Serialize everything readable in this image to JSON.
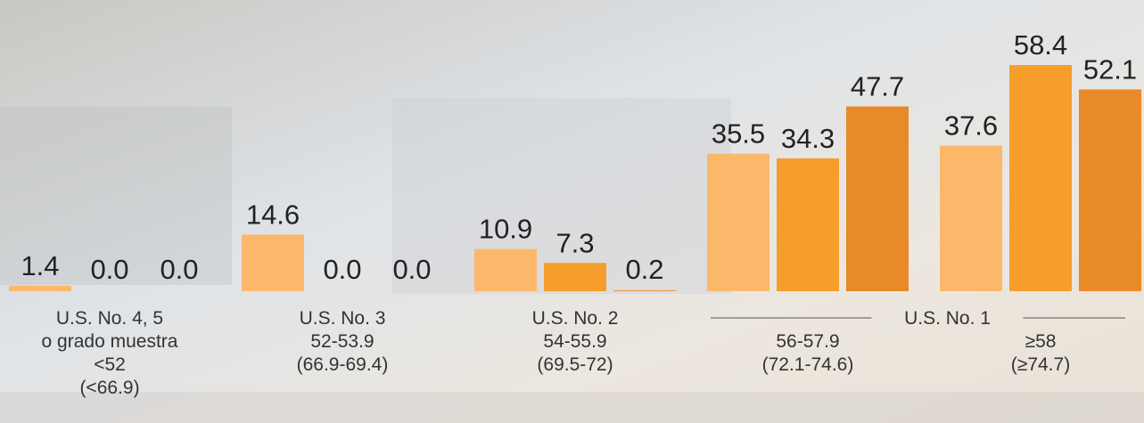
{
  "chart_data": {
    "type": "bar",
    "categories": [
      [
        "U.S. No. 4, 5",
        "o grado muestra",
        "<52",
        "(<66.9)"
      ],
      [
        "U.S. No. 3",
        "52-53.9",
        "(66.9-69.4)"
      ],
      [
        "U.S. No. 2",
        "54-55.9",
        "(69.5-72)"
      ],
      [
        "56-57.9",
        "(72.1-74.6)"
      ],
      [
        "≥58",
        "(≥74.7)"
      ]
    ],
    "group_label": "U.S. No. 1",
    "series": [
      {
        "color": "#fbb86a",
        "values": [
          1.4,
          14.6,
          10.9,
          35.5,
          37.6
        ],
        "value_labels": [
          "1.4",
          "14.6",
          "10.9",
          "35.5",
          "37.6"
        ]
      },
      {
        "color": "#f59e2c",
        "values": [
          0,
          0,
          7.3,
          34.3,
          58.4
        ],
        "value_labels": [
          "0.0",
          "0.0",
          "7.3",
          "34.3",
          "58.4"
        ]
      },
      {
        "color": "#e88a28",
        "values": [
          0,
          0,
          0.2,
          47.7,
          52.1
        ],
        "value_labels": [
          "0.0",
          "0.0",
          "0.2",
          "47.7",
          "52.1"
        ]
      }
    ]
  }
}
